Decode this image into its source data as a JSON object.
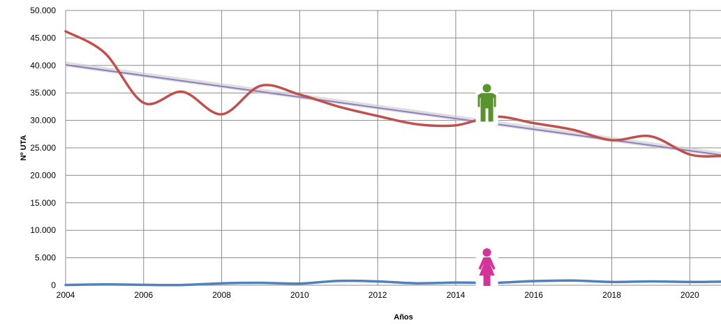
{
  "chart_data": {
    "type": "line",
    "xlabel": "Años",
    "ylabel": "Nº UTA",
    "xlim": [
      2004,
      2020.8
    ],
    "ylim": [
      0,
      50000
    ],
    "x_ticks": [
      2004,
      2006,
      2008,
      2010,
      2012,
      2014,
      2016,
      2018,
      2020
    ],
    "y_ticks": [
      0,
      5000,
      10000,
      15000,
      20000,
      25000,
      30000,
      35000,
      40000,
      45000,
      50000
    ],
    "y_tick_labels": [
      "0",
      "5.000",
      "10.000",
      "15.000",
      "20.000",
      "25.000",
      "30.000",
      "35.000",
      "40.000",
      "45.000",
      "50.000"
    ],
    "grid": true,
    "series": [
      {
        "color": "#c0504d",
        "x": [
          2004,
          2005,
          2006,
          2007,
          2008,
          2009,
          2010,
          2011,
          2012,
          2013,
          2014,
          2015,
          2016,
          2017,
          2018,
          2019,
          2020,
          2020.8
        ],
        "y": [
          46200,
          42300,
          33200,
          35200,
          31100,
          36300,
          34700,
          32500,
          30800,
          29300,
          29100,
          30700,
          29500,
          28300,
          26400,
          27100,
          23800,
          23500
        ]
      },
      {
        "color": "#4f81bd",
        "x": [
          2004,
          2005,
          2006,
          2007,
          2008,
          2009,
          2010,
          2011,
          2012,
          2013,
          2014,
          2015,
          2016,
          2017,
          2018,
          2019,
          2020,
          2020.8
        ],
        "y": [
          50,
          150,
          80,
          50,
          350,
          450,
          300,
          800,
          700,
          350,
          500,
          450,
          750,
          850,
          600,
          700,
          600,
          650
        ]
      }
    ],
    "trendline": {
      "color": "#8e7cc3",
      "x": [
        2004,
        2020.8
      ],
      "y": [
        40100,
        23700
      ]
    },
    "icons": [
      {
        "name": "male-figure-icon",
        "color": "#5a922e",
        "x": 2014.8,
        "y": 33200
      },
      {
        "name": "female-figure-icon",
        "color": "#d4339a",
        "x": 2014.8,
        "y": 3300
      }
    ]
  }
}
